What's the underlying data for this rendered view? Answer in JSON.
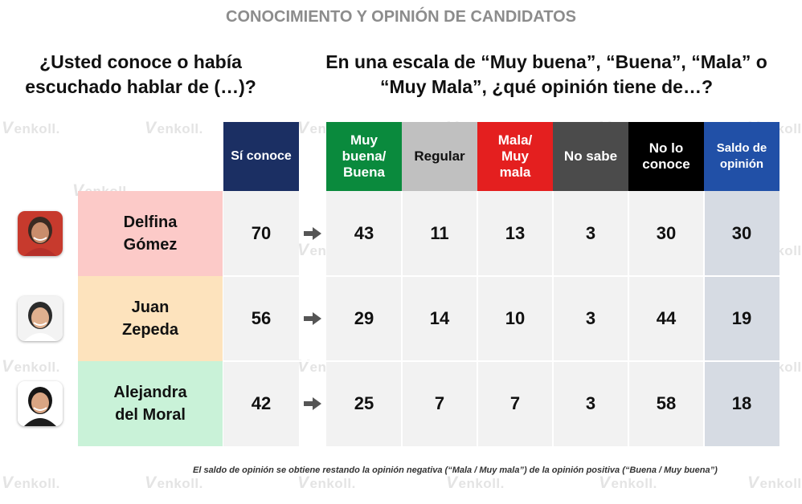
{
  "watermark": "enkoll.",
  "page_title": "CONOCIMIENTO Y OPINIÓN DE CANDIDATOS",
  "question_left": "¿Usted conoce o había escuchado hablar de (…)?",
  "question_right": "En una escala de “Muy buena”, “Buena”, “Mala” o “Muy Mala”, ¿qué opinión tiene de…?",
  "footnote": "El saldo de opinión se obtiene restando la opinión negativa (“Mala / Muy mala”) de la opinión positiva (“Buena / Muy buena”)",
  "colors": {
    "si_conoce": "#1b2f63",
    "buena": "#0a8a3d",
    "regular": "#c0c0c0",
    "mala": "#e41f1f",
    "no_sabe": "#4b4b4b",
    "no_conoce": "#000000",
    "saldo": "#2150a7",
    "saldo_cells": "#d6dbe3",
    "cells": "#f2f2f2",
    "row_delfina": "#fccac8",
    "row_juan": "#fde3bd",
    "row_alejandra": "#c9f2d8"
  },
  "chart_data": {
    "type": "table",
    "title": "CONOCIMIENTO Y OPINIÓN DE CANDIDATOS",
    "columns": [
      {
        "key": "si_conoce",
        "label": "Sí conoce"
      },
      {
        "key": "buena",
        "label": "Muy\nbuena/\nBuena"
      },
      {
        "key": "regular",
        "label": "Regular"
      },
      {
        "key": "mala",
        "label": "Mala/\nMuy\nmala"
      },
      {
        "key": "no_sabe",
        "label": "No sabe"
      },
      {
        "key": "no_conoce",
        "label": "No lo\nconoce"
      },
      {
        "key": "saldo",
        "label": "Saldo de\nopinión"
      }
    ],
    "rows": [
      {
        "name": "Delfina\nGómez",
        "avatar": "person-icon",
        "values": [
          70,
          43,
          11,
          13,
          3,
          30,
          30
        ]
      },
      {
        "name": "Juan\nZepeda",
        "avatar": "person-icon",
        "values": [
          56,
          29,
          14,
          10,
          3,
          44,
          19
        ]
      },
      {
        "name": "Alejandra\ndel Moral",
        "avatar": "person-icon",
        "values": [
          42,
          25,
          7,
          7,
          3,
          58,
          18
        ]
      }
    ]
  }
}
